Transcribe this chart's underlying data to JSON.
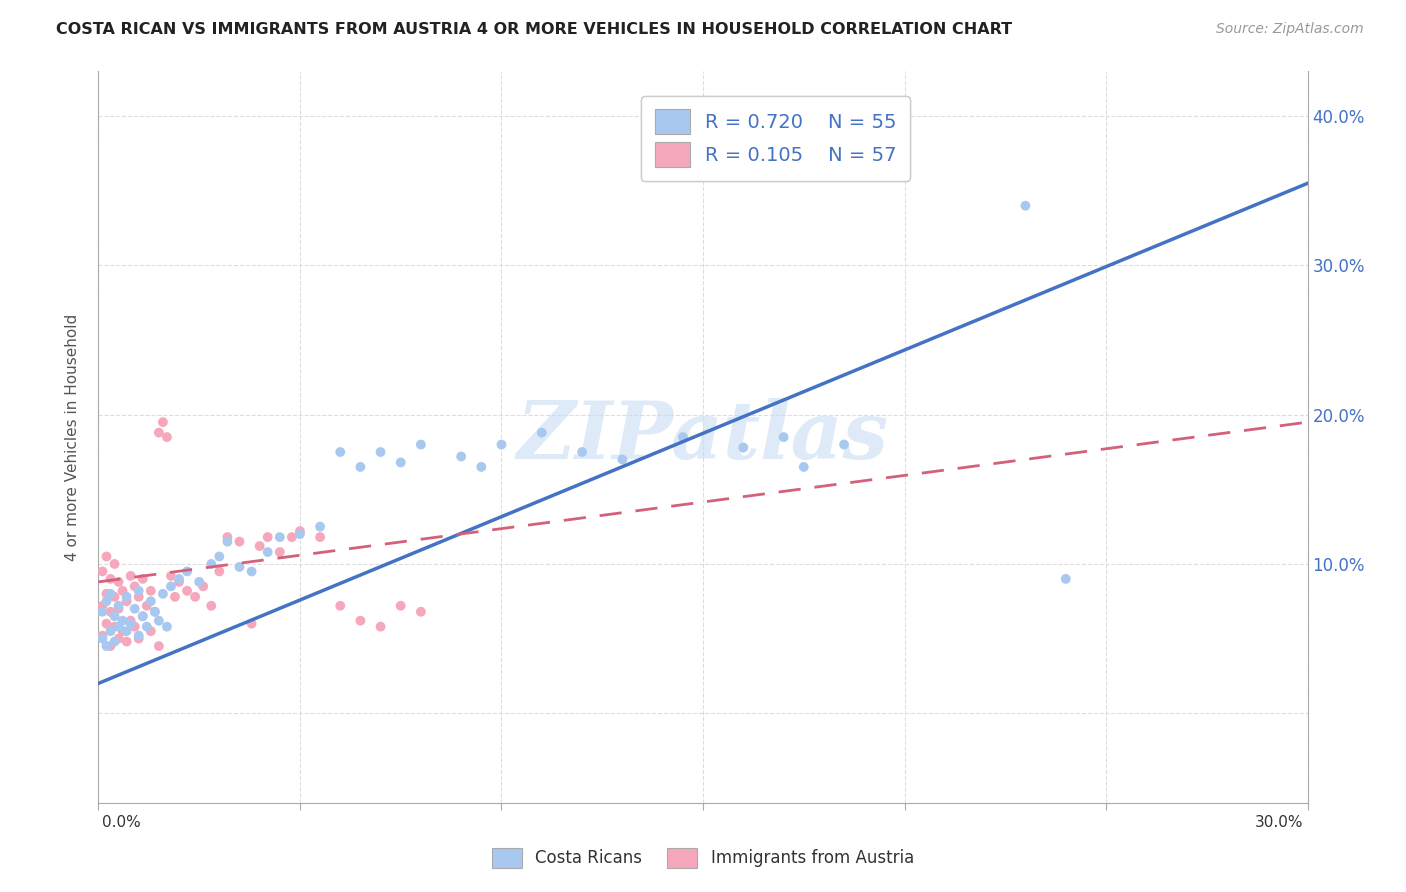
{
  "title": "COSTA RICAN VS IMMIGRANTS FROM AUSTRIA 4 OR MORE VEHICLES IN HOUSEHOLD CORRELATION CHART",
  "source": "Source: ZipAtlas.com",
  "ylabel": "4 or more Vehicles in Household",
  "xlim": [
    0.0,
    0.3
  ],
  "ylim": [
    -0.06,
    0.43
  ],
  "ytick_positions": [
    0.0,
    0.1,
    0.2,
    0.3,
    0.4
  ],
  "ytick_labels": [
    "",
    "10.0%",
    "20.0%",
    "30.0%",
    "40.0%"
  ],
  "xtick_positions": [
    0.0,
    0.05,
    0.1,
    0.15,
    0.2,
    0.25,
    0.3
  ],
  "series1_label": "Costa Ricans",
  "series1_color": "#A8C8F0",
  "series1_line_color": "#4472C4",
  "series1_R": 0.72,
  "series1_N": 55,
  "series2_label": "Immigrants from Austria",
  "series2_color": "#F5A8BB",
  "series2_line_color": "#D4607A",
  "series2_R": 0.105,
  "series2_N": 57,
  "watermark": "ZIPatlas",
  "bg_color": "#ffffff",
  "grid_color": "#dddddd",
  "scatter_size": 50,
  "costa_rican_x": [
    0.001,
    0.001,
    0.002,
    0.002,
    0.003,
    0.003,
    0.004,
    0.004,
    0.005,
    0.005,
    0.006,
    0.007,
    0.007,
    0.008,
    0.009,
    0.01,
    0.01,
    0.011,
    0.012,
    0.013,
    0.014,
    0.015,
    0.016,
    0.017,
    0.018,
    0.02,
    0.022,
    0.025,
    0.028,
    0.03,
    0.032,
    0.035,
    0.038,
    0.042,
    0.045,
    0.05,
    0.055,
    0.06,
    0.065,
    0.07,
    0.075,
    0.08,
    0.09,
    0.095,
    0.1,
    0.11,
    0.12,
    0.13,
    0.145,
    0.16,
    0.17,
    0.175,
    0.185,
    0.23,
    0.24
  ],
  "costa_rican_y": [
    0.05,
    0.068,
    0.045,
    0.075,
    0.055,
    0.08,
    0.048,
    0.065,
    0.058,
    0.072,
    0.062,
    0.055,
    0.078,
    0.06,
    0.07,
    0.052,
    0.082,
    0.065,
    0.058,
    0.075,
    0.068,
    0.062,
    0.08,
    0.058,
    0.085,
    0.09,
    0.095,
    0.088,
    0.1,
    0.105,
    0.115,
    0.098,
    0.095,
    0.108,
    0.118,
    0.12,
    0.125,
    0.175,
    0.165,
    0.175,
    0.168,
    0.18,
    0.172,
    0.165,
    0.18,
    0.188,
    0.175,
    0.17,
    0.185,
    0.178,
    0.185,
    0.165,
    0.18,
    0.34,
    0.09
  ],
  "austria_x": [
    0.001,
    0.001,
    0.001,
    0.002,
    0.002,
    0.002,
    0.003,
    0.003,
    0.003,
    0.004,
    0.004,
    0.004,
    0.005,
    0.005,
    0.005,
    0.006,
    0.006,
    0.007,
    0.007,
    0.008,
    0.008,
    0.009,
    0.009,
    0.01,
    0.01,
    0.011,
    0.011,
    0.012,
    0.013,
    0.013,
    0.014,
    0.015,
    0.015,
    0.016,
    0.017,
    0.018,
    0.019,
    0.02,
    0.022,
    0.024,
    0.026,
    0.028,
    0.03,
    0.032,
    0.035,
    0.038,
    0.04,
    0.042,
    0.045,
    0.048,
    0.05,
    0.055,
    0.06,
    0.065,
    0.07,
    0.075,
    0.08
  ],
  "austria_y": [
    0.052,
    0.072,
    0.095,
    0.06,
    0.08,
    0.105,
    0.045,
    0.068,
    0.09,
    0.058,
    0.078,
    0.1,
    0.05,
    0.07,
    0.088,
    0.055,
    0.082,
    0.048,
    0.075,
    0.062,
    0.092,
    0.058,
    0.085,
    0.05,
    0.078,
    0.065,
    0.09,
    0.072,
    0.055,
    0.082,
    0.068,
    0.045,
    0.188,
    0.195,
    0.185,
    0.092,
    0.078,
    0.088,
    0.082,
    0.078,
    0.085,
    0.072,
    0.095,
    0.118,
    0.115,
    0.06,
    0.112,
    0.118,
    0.108,
    0.118,
    0.122,
    0.118,
    0.072,
    0.062,
    0.058,
    0.072,
    0.068
  ],
  "cr_line_x0": 0.0,
  "cr_line_x1": 0.3,
  "cr_line_y0": 0.02,
  "cr_line_y1": 0.355,
  "at_line_x0": 0.0,
  "at_line_x1": 0.3,
  "at_line_y0": 0.088,
  "at_line_y1": 0.195
}
